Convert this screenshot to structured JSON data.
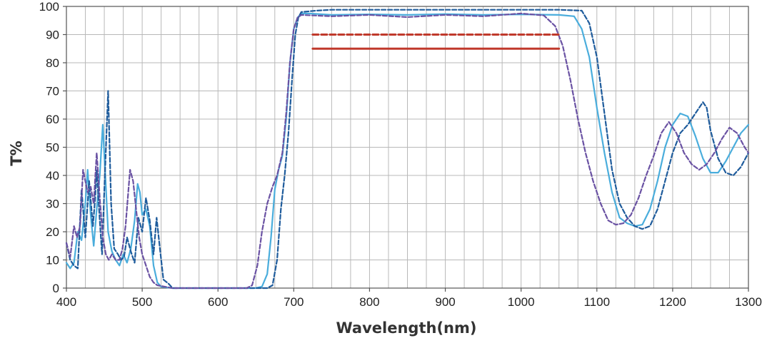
{
  "chart_data": {
    "type": "line",
    "title": "",
    "xlabel": "Wavelength(nm)",
    "ylabel": "T%",
    "xlim": [
      400,
      1300
    ],
    "ylim": [
      0,
      100
    ],
    "x_ticks": [
      400,
      500,
      600,
      700,
      800,
      900,
      1000,
      1100,
      1200,
      1300
    ],
    "y_ticks": [
      0,
      10,
      20,
      30,
      40,
      50,
      60,
      70,
      80,
      90,
      100
    ],
    "x_minor_step": 25,
    "grid": true,
    "legend": "none",
    "series": [
      {
        "color": "#4aaddc",
        "style": "solid",
        "points": [
          [
            400,
            9
          ],
          [
            405,
            7
          ],
          [
            410,
            9
          ],
          [
            415,
            20
          ],
          [
            420,
            17
          ],
          [
            425,
            30
          ],
          [
            428,
            42
          ],
          [
            432,
            26
          ],
          [
            436,
            15
          ],
          [
            440,
            28
          ],
          [
            444,
            40
          ],
          [
            448,
            58
          ],
          [
            451,
            42
          ],
          [
            455,
            20
          ],
          [
            460,
            13
          ],
          [
            465,
            10
          ],
          [
            470,
            8
          ],
          [
            475,
            12
          ],
          [
            480,
            9
          ],
          [
            485,
            14
          ],
          [
            490,
            24
          ],
          [
            494,
            37
          ],
          [
            497,
            34
          ],
          [
            500,
            26
          ],
          [
            505,
            28
          ],
          [
            510,
            22
          ],
          [
            515,
            8
          ],
          [
            520,
            2
          ],
          [
            525,
            0.5
          ],
          [
            540,
            0
          ],
          [
            600,
            0
          ],
          [
            650,
            0
          ],
          [
            658,
            0.5
          ],
          [
            665,
            5
          ],
          [
            670,
            18
          ],
          [
            675,
            35
          ],
          [
            680,
            42
          ],
          [
            685,
            47
          ],
          [
            690,
            60
          ],
          [
            695,
            80
          ],
          [
            700,
            92
          ],
          [
            705,
            96
          ],
          [
            710,
            97.5
          ],
          [
            720,
            97.5
          ],
          [
            750,
            97
          ],
          [
            800,
            97.2
          ],
          [
            850,
            97
          ],
          [
            900,
            97.3
          ],
          [
            950,
            97
          ],
          [
            1000,
            97.2
          ],
          [
            1050,
            97
          ],
          [
            1070,
            96.5
          ],
          [
            1080,
            92
          ],
          [
            1090,
            82
          ],
          [
            1100,
            64
          ],
          [
            1110,
            48
          ],
          [
            1120,
            34
          ],
          [
            1130,
            25
          ],
          [
            1140,
            23
          ],
          [
            1150,
            22
          ],
          [
            1160,
            22.5
          ],
          [
            1170,
            28
          ],
          [
            1180,
            38
          ],
          [
            1190,
            50
          ],
          [
            1200,
            58
          ],
          [
            1210,
            62
          ],
          [
            1220,
            61
          ],
          [
            1230,
            54
          ],
          [
            1240,
            46
          ],
          [
            1250,
            41
          ],
          [
            1260,
            41
          ],
          [
            1270,
            45
          ],
          [
            1280,
            50
          ],
          [
            1290,
            55
          ],
          [
            1300,
            58
          ]
        ]
      },
      {
        "color": "#1f5c9c",
        "style": "dashed",
        "points": [
          [
            400,
            16
          ],
          [
            405,
            10
          ],
          [
            410,
            8
          ],
          [
            415,
            7
          ],
          [
            420,
            35
          ],
          [
            425,
            18
          ],
          [
            430,
            38
          ],
          [
            435,
            22
          ],
          [
            438,
            32
          ],
          [
            440,
            42
          ],
          [
            444,
            24
          ],
          [
            447,
            12
          ],
          [
            450,
            35
          ],
          [
            455,
            70
          ],
          [
            459,
            30
          ],
          [
            463,
            14
          ],
          [
            468,
            12
          ],
          [
            472,
            10
          ],
          [
            476,
            11
          ],
          [
            480,
            18
          ],
          [
            485,
            13
          ],
          [
            490,
            9
          ],
          [
            495,
            25
          ],
          [
            500,
            20
          ],
          [
            505,
            32
          ],
          [
            510,
            24
          ],
          [
            515,
            12
          ],
          [
            519,
            25
          ],
          [
            523,
            15
          ],
          [
            528,
            3
          ],
          [
            535,
            1.5
          ],
          [
            540,
            0
          ],
          [
            600,
            0
          ],
          [
            665,
            0
          ],
          [
            672,
            1
          ],
          [
            678,
            10
          ],
          [
            683,
            28
          ],
          [
            688,
            40
          ],
          [
            693,
            55
          ],
          [
            698,
            75
          ],
          [
            702,
            90
          ],
          [
            706,
            96
          ],
          [
            710,
            98
          ],
          [
            730,
            98.5
          ],
          [
            750,
            98.8
          ],
          [
            800,
            98.8
          ],
          [
            850,
            98.8
          ],
          [
            900,
            98.8
          ],
          [
            950,
            98.8
          ],
          [
            1000,
            98.8
          ],
          [
            1050,
            98.8
          ],
          [
            1080,
            98.5
          ],
          [
            1090,
            94
          ],
          [
            1100,
            82
          ],
          [
            1110,
            62
          ],
          [
            1120,
            42
          ],
          [
            1130,
            30
          ],
          [
            1140,
            25
          ],
          [
            1150,
            22
          ],
          [
            1160,
            21
          ],
          [
            1170,
            22
          ],
          [
            1180,
            28
          ],
          [
            1190,
            38
          ],
          [
            1200,
            48
          ],
          [
            1210,
            55
          ],
          [
            1220,
            58
          ],
          [
            1230,
            62
          ],
          [
            1240,
            66
          ],
          [
            1245,
            64
          ],
          [
            1250,
            56
          ],
          [
            1260,
            46
          ],
          [
            1270,
            41
          ],
          [
            1280,
            40
          ],
          [
            1290,
            43
          ],
          [
            1300,
            48
          ]
        ]
      },
      {
        "color": "#6a52a3",
        "style": "dashed",
        "points": [
          [
            400,
            16
          ],
          [
            405,
            11
          ],
          [
            410,
            22
          ],
          [
            414,
            18
          ],
          [
            418,
            22
          ],
          [
            422,
            42
          ],
          [
            428,
            34
          ],
          [
            432,
            36
          ],
          [
            436,
            30
          ],
          [
            440,
            48
          ],
          [
            444,
            32
          ],
          [
            448,
            18
          ],
          [
            452,
            12
          ],
          [
            456,
            10
          ],
          [
            460,
            12
          ],
          [
            465,
            10
          ],
          [
            470,
            10
          ],
          [
            474,
            14
          ],
          [
            478,
            22
          ],
          [
            484,
            42
          ],
          [
            488,
            38
          ],
          [
            492,
            28
          ],
          [
            496,
            18
          ],
          [
            500,
            12
          ],
          [
            505,
            8
          ],
          [
            510,
            4
          ],
          [
            515,
            2
          ],
          [
            520,
            1
          ],
          [
            540,
            0
          ],
          [
            600,
            0
          ],
          [
            638,
            0
          ],
          [
            645,
            1
          ],
          [
            652,
            8
          ],
          [
            658,
            20
          ],
          [
            665,
            30
          ],
          [
            672,
            36
          ],
          [
            678,
            40
          ],
          [
            685,
            48
          ],
          [
            690,
            62
          ],
          [
            695,
            80
          ],
          [
            700,
            92
          ],
          [
            705,
            96
          ],
          [
            710,
            97
          ],
          [
            750,
            96.5
          ],
          [
            800,
            97
          ],
          [
            850,
            96.2
          ],
          [
            900,
            97
          ],
          [
            950,
            96.5
          ],
          [
            1000,
            97.5
          ],
          [
            1030,
            96.8
          ],
          [
            1045,
            93
          ],
          [
            1055,
            86
          ],
          [
            1065,
            74
          ],
          [
            1075,
            60
          ],
          [
            1085,
            48
          ],
          [
            1095,
            38
          ],
          [
            1105,
            30
          ],
          [
            1115,
            24
          ],
          [
            1125,
            22.5
          ],
          [
            1135,
            23
          ],
          [
            1145,
            26
          ],
          [
            1155,
            32
          ],
          [
            1165,
            40
          ],
          [
            1175,
            47
          ],
          [
            1185,
            55
          ],
          [
            1195,
            59
          ],
          [
            1205,
            55
          ],
          [
            1215,
            48
          ],
          [
            1225,
            44
          ],
          [
            1235,
            42
          ],
          [
            1245,
            44
          ],
          [
            1255,
            48
          ],
          [
            1265,
            53
          ],
          [
            1275,
            57
          ],
          [
            1285,
            55
          ],
          [
            1295,
            50
          ],
          [
            1300,
            48
          ]
        ]
      },
      {
        "color": "#c0392b",
        "style": "dashed",
        "points": [
          [
            725,
            90
          ],
          [
            1050,
            90
          ]
        ]
      },
      {
        "color": "#c0392b",
        "style": "solid",
        "points": [
          [
            725,
            85
          ],
          [
            1050,
            85
          ]
        ]
      }
    ]
  }
}
